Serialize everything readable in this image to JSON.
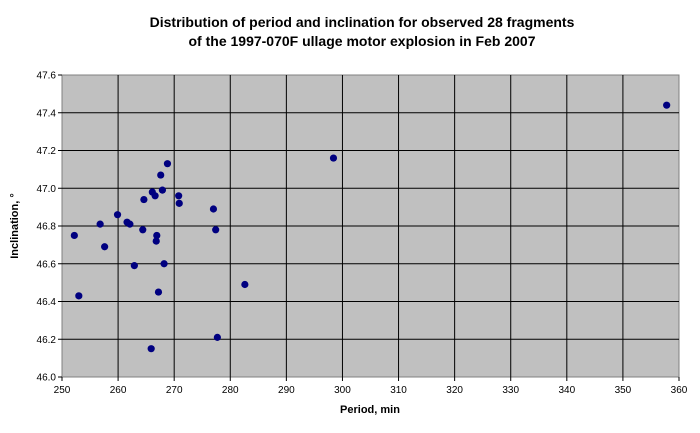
{
  "chart_data": {
    "type": "scatter",
    "title": [
      "Distribution of period and inclination for observed 28 fragments",
      "of the 1997-070F ullage motor explosion in Feb 2007"
    ],
    "xlabel": "Period, min",
    "ylabel": "Inclination, °",
    "xlim": [
      250,
      360
    ],
    "ylim": [
      46.0,
      47.6
    ],
    "x_ticks": [
      "250",
      "260",
      "270",
      "280",
      "290",
      "300",
      "310",
      "320",
      "330",
      "340",
      "350",
      "360"
    ],
    "y_ticks": [
      "46.0",
      "46.2",
      "46.4",
      "46.6",
      "46.8",
      "47.0",
      "47.2",
      "47.4",
      "47.6"
    ],
    "grid": true,
    "legend": "none",
    "colors": {
      "plot_bg": "#c0c0c0",
      "grid": "#000000",
      "marker": "#000080"
    },
    "points": [
      {
        "x": 252.2,
        "y": 46.75
      },
      {
        "x": 253.0,
        "y": 46.43
      },
      {
        "x": 256.8,
        "y": 46.81
      },
      {
        "x": 257.6,
        "y": 46.69
      },
      {
        "x": 259.9,
        "y": 46.86
      },
      {
        "x": 261.6,
        "y": 46.82
      },
      {
        "x": 262.1,
        "y": 46.81
      },
      {
        "x": 262.9,
        "y": 46.59
      },
      {
        "x": 264.4,
        "y": 46.78
      },
      {
        "x": 264.6,
        "y": 46.94
      },
      {
        "x": 265.9,
        "y": 46.15
      },
      {
        "x": 266.1,
        "y": 46.98
      },
      {
        "x": 266.6,
        "y": 46.96
      },
      {
        "x": 266.8,
        "y": 46.72
      },
      {
        "x": 266.9,
        "y": 46.75
      },
      {
        "x": 267.2,
        "y": 46.45
      },
      {
        "x": 267.6,
        "y": 47.07
      },
      {
        "x": 267.9,
        "y": 46.99
      },
      {
        "x": 268.2,
        "y": 46.6
      },
      {
        "x": 268.8,
        "y": 47.13
      },
      {
        "x": 270.8,
        "y": 46.96
      },
      {
        "x": 270.9,
        "y": 46.92
      },
      {
        "x": 277.0,
        "y": 46.89
      },
      {
        "x": 277.4,
        "y": 46.78
      },
      {
        "x": 277.7,
        "y": 46.21
      },
      {
        "x": 282.6,
        "y": 46.49
      },
      {
        "x": 298.4,
        "y": 47.16
      },
      {
        "x": 357.8,
        "y": 47.44
      }
    ]
  }
}
